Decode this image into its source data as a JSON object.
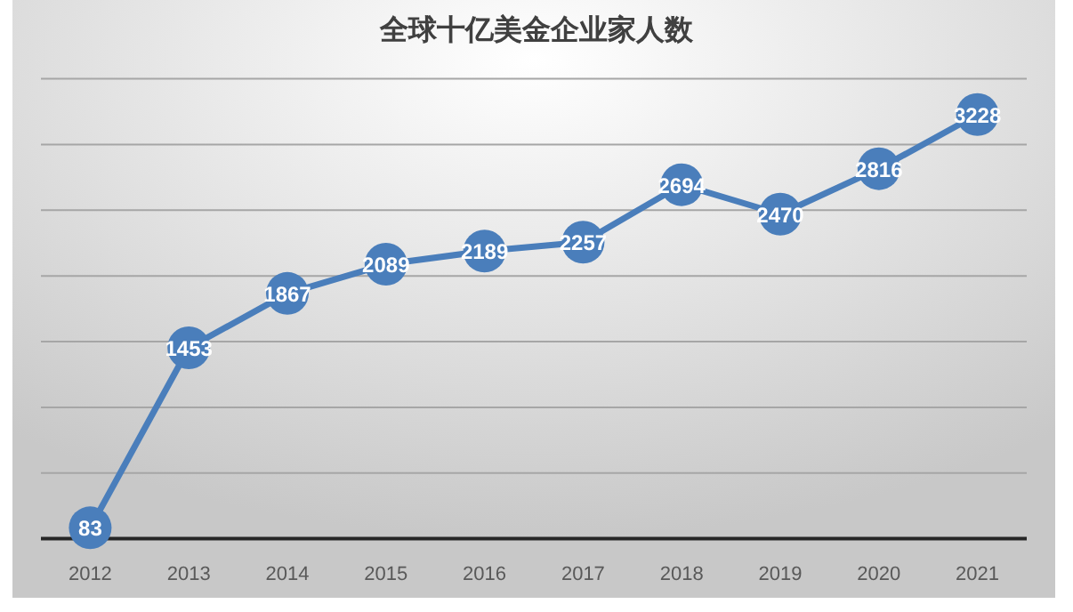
{
  "chart_data": {
    "type": "line",
    "title": "全球十亿美金企业家人数",
    "categories": [
      "2012",
      "2013",
      "2014",
      "2015",
      "2016",
      "2017",
      "2018",
      "2019",
      "2020",
      "2021"
    ],
    "values": [
      83,
      1453,
      1867,
      2089,
      2189,
      2257,
      2694,
      2470,
      2816,
      3228
    ],
    "color": "#4a7ebb",
    "ylim": [
      0,
      3500
    ],
    "yticks": [
      {
        "value": 0,
        "label": null
      },
      {
        "value": 500,
        "label": null
      },
      {
        "value": 1000,
        "label": null
      },
      {
        "value": 1500,
        "label": null
      },
      {
        "value": 2000,
        "label": null
      },
      {
        "value": 2500,
        "label": null
      },
      {
        "value": 3000,
        "label": null
      },
      {
        "value": 3500,
        "label": null
      }
    ],
    "grid": "y",
    "marker": "circle",
    "data_labels": true,
    "tick_labels": "x"
  }
}
